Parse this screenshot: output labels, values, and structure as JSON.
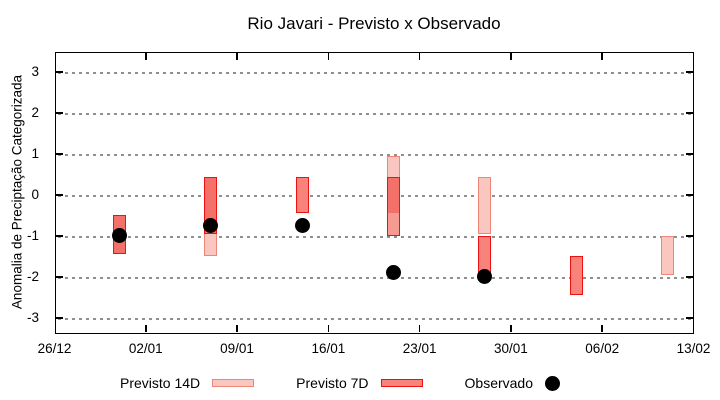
{
  "chart_data": {
    "type": "bar",
    "subtype": "floating-interval-forecast-with-observations",
    "title": "Rio Javari - Previsto x Observado",
    "xlabel": "",
    "ylabel": "Anomalia de Preciptação Categorizada",
    "grid": "horizontal-dotted",
    "legend_position": "bottom-center",
    "y_axis": {
      "ticks": [
        3,
        2,
        1,
        0,
        -1,
        -2,
        -3
      ],
      "range": [
        -3.38,
        3.5
      ]
    },
    "x_axis": {
      "range_days": [
        0,
        49
      ],
      "ticks": [
        {
          "day": 0,
          "label": "26/12"
        },
        {
          "day": 7,
          "label": "02/01"
        },
        {
          "day": 14,
          "label": "09/01"
        },
        {
          "day": 21,
          "label": "16/01"
        },
        {
          "day": 28,
          "label": "23/01"
        },
        {
          "day": 35,
          "label": "30/01"
        },
        {
          "day": 42,
          "label": "06/02"
        },
        {
          "day": 49,
          "label": "13/02"
        }
      ]
    },
    "groups": [
      {
        "date": "31/12",
        "day": 5,
        "observado": -1.0,
        "layers": [
          {
            "series": "previsto_7d",
            "from": -0.5,
            "to": -1.45,
            "fill": "dark7",
            "stroke": "red_border"
          }
        ]
      },
      {
        "date": "07/01",
        "day": 12,
        "observado": -0.75,
        "layers": [
          {
            "series": "previsto_14d",
            "from": 0.45,
            "to": -1.5,
            "fill": "pink14",
            "stroke": "salmon_border"
          },
          {
            "series": "previsto_7d",
            "from": 0.45,
            "to": -0.95,
            "fill": "dark7",
            "stroke": "red_border"
          }
        ]
      },
      {
        "date": "14/01",
        "day": 19,
        "observado": -0.75,
        "layers": [
          {
            "series": "previsto_7d",
            "from": 0.45,
            "to": -0.45,
            "fill": "salmon7",
            "stroke": "red_border"
          }
        ]
      },
      {
        "date": "21/01",
        "day": 26,
        "observado": -1.9,
        "layers": [
          {
            "series": "previsto_14d",
            "from": 0.95,
            "to": -0.45,
            "fill": "pink14",
            "stroke": "salmon_border"
          },
          {
            "series": "previsto_7d",
            "from": 0.45,
            "to": -0.45,
            "fill": "dark7",
            "stroke": "none"
          },
          {
            "series": "previsto_7d",
            "from": -0.45,
            "to": -1.0,
            "fill": "mid7",
            "stroke": "none"
          },
          {
            "series": "previsto_7d",
            "from": 0.45,
            "to": -1.0,
            "fill": "none",
            "stroke": "red_border"
          }
        ]
      },
      {
        "date": "28/01",
        "day": 33,
        "observado": -2.0,
        "layers": [
          {
            "series": "previsto_14d",
            "from": 0.45,
            "to": -0.95,
            "fill": "pink14",
            "stroke": "salmon_border"
          },
          {
            "series": "previsto_7d",
            "from": -1.0,
            "to": -1.9,
            "fill": "salmon7",
            "stroke": "red_border"
          }
        ]
      },
      {
        "date": "04/02",
        "day": 40,
        "observado": null,
        "layers": [
          {
            "series": "previsto_7d",
            "from": -1.5,
            "to": -2.45,
            "fill": "salmon7",
            "stroke": "red_border"
          }
        ]
      },
      {
        "date": "11/02",
        "day": 47,
        "observado": null,
        "layers": [
          {
            "series": "previsto_14d",
            "from": -1.0,
            "to": -1.95,
            "fill": "pink14",
            "stroke": "salmon_border"
          }
        ]
      }
    ],
    "legend": {
      "items": [
        {
          "label": "Previsto 14D",
          "type": "swatch",
          "fill": "pink14",
          "stroke": "salmon_border"
        },
        {
          "label": "Previsto 7D",
          "type": "swatch",
          "fill": "salmon7",
          "stroke": "red_border"
        },
        {
          "label": "Observado",
          "type": "dot"
        }
      ]
    },
    "palette": {
      "pink14": "#f9c7bf",
      "salmon_border": "#ef8576",
      "salmon7": "#f8837a",
      "dark7": "#f4716a",
      "mid7": "#f79b92",
      "red_border": "#ee1111",
      "dot": "#000000",
      "grid": "#8f8f8f",
      "axis": "#000000"
    }
  }
}
